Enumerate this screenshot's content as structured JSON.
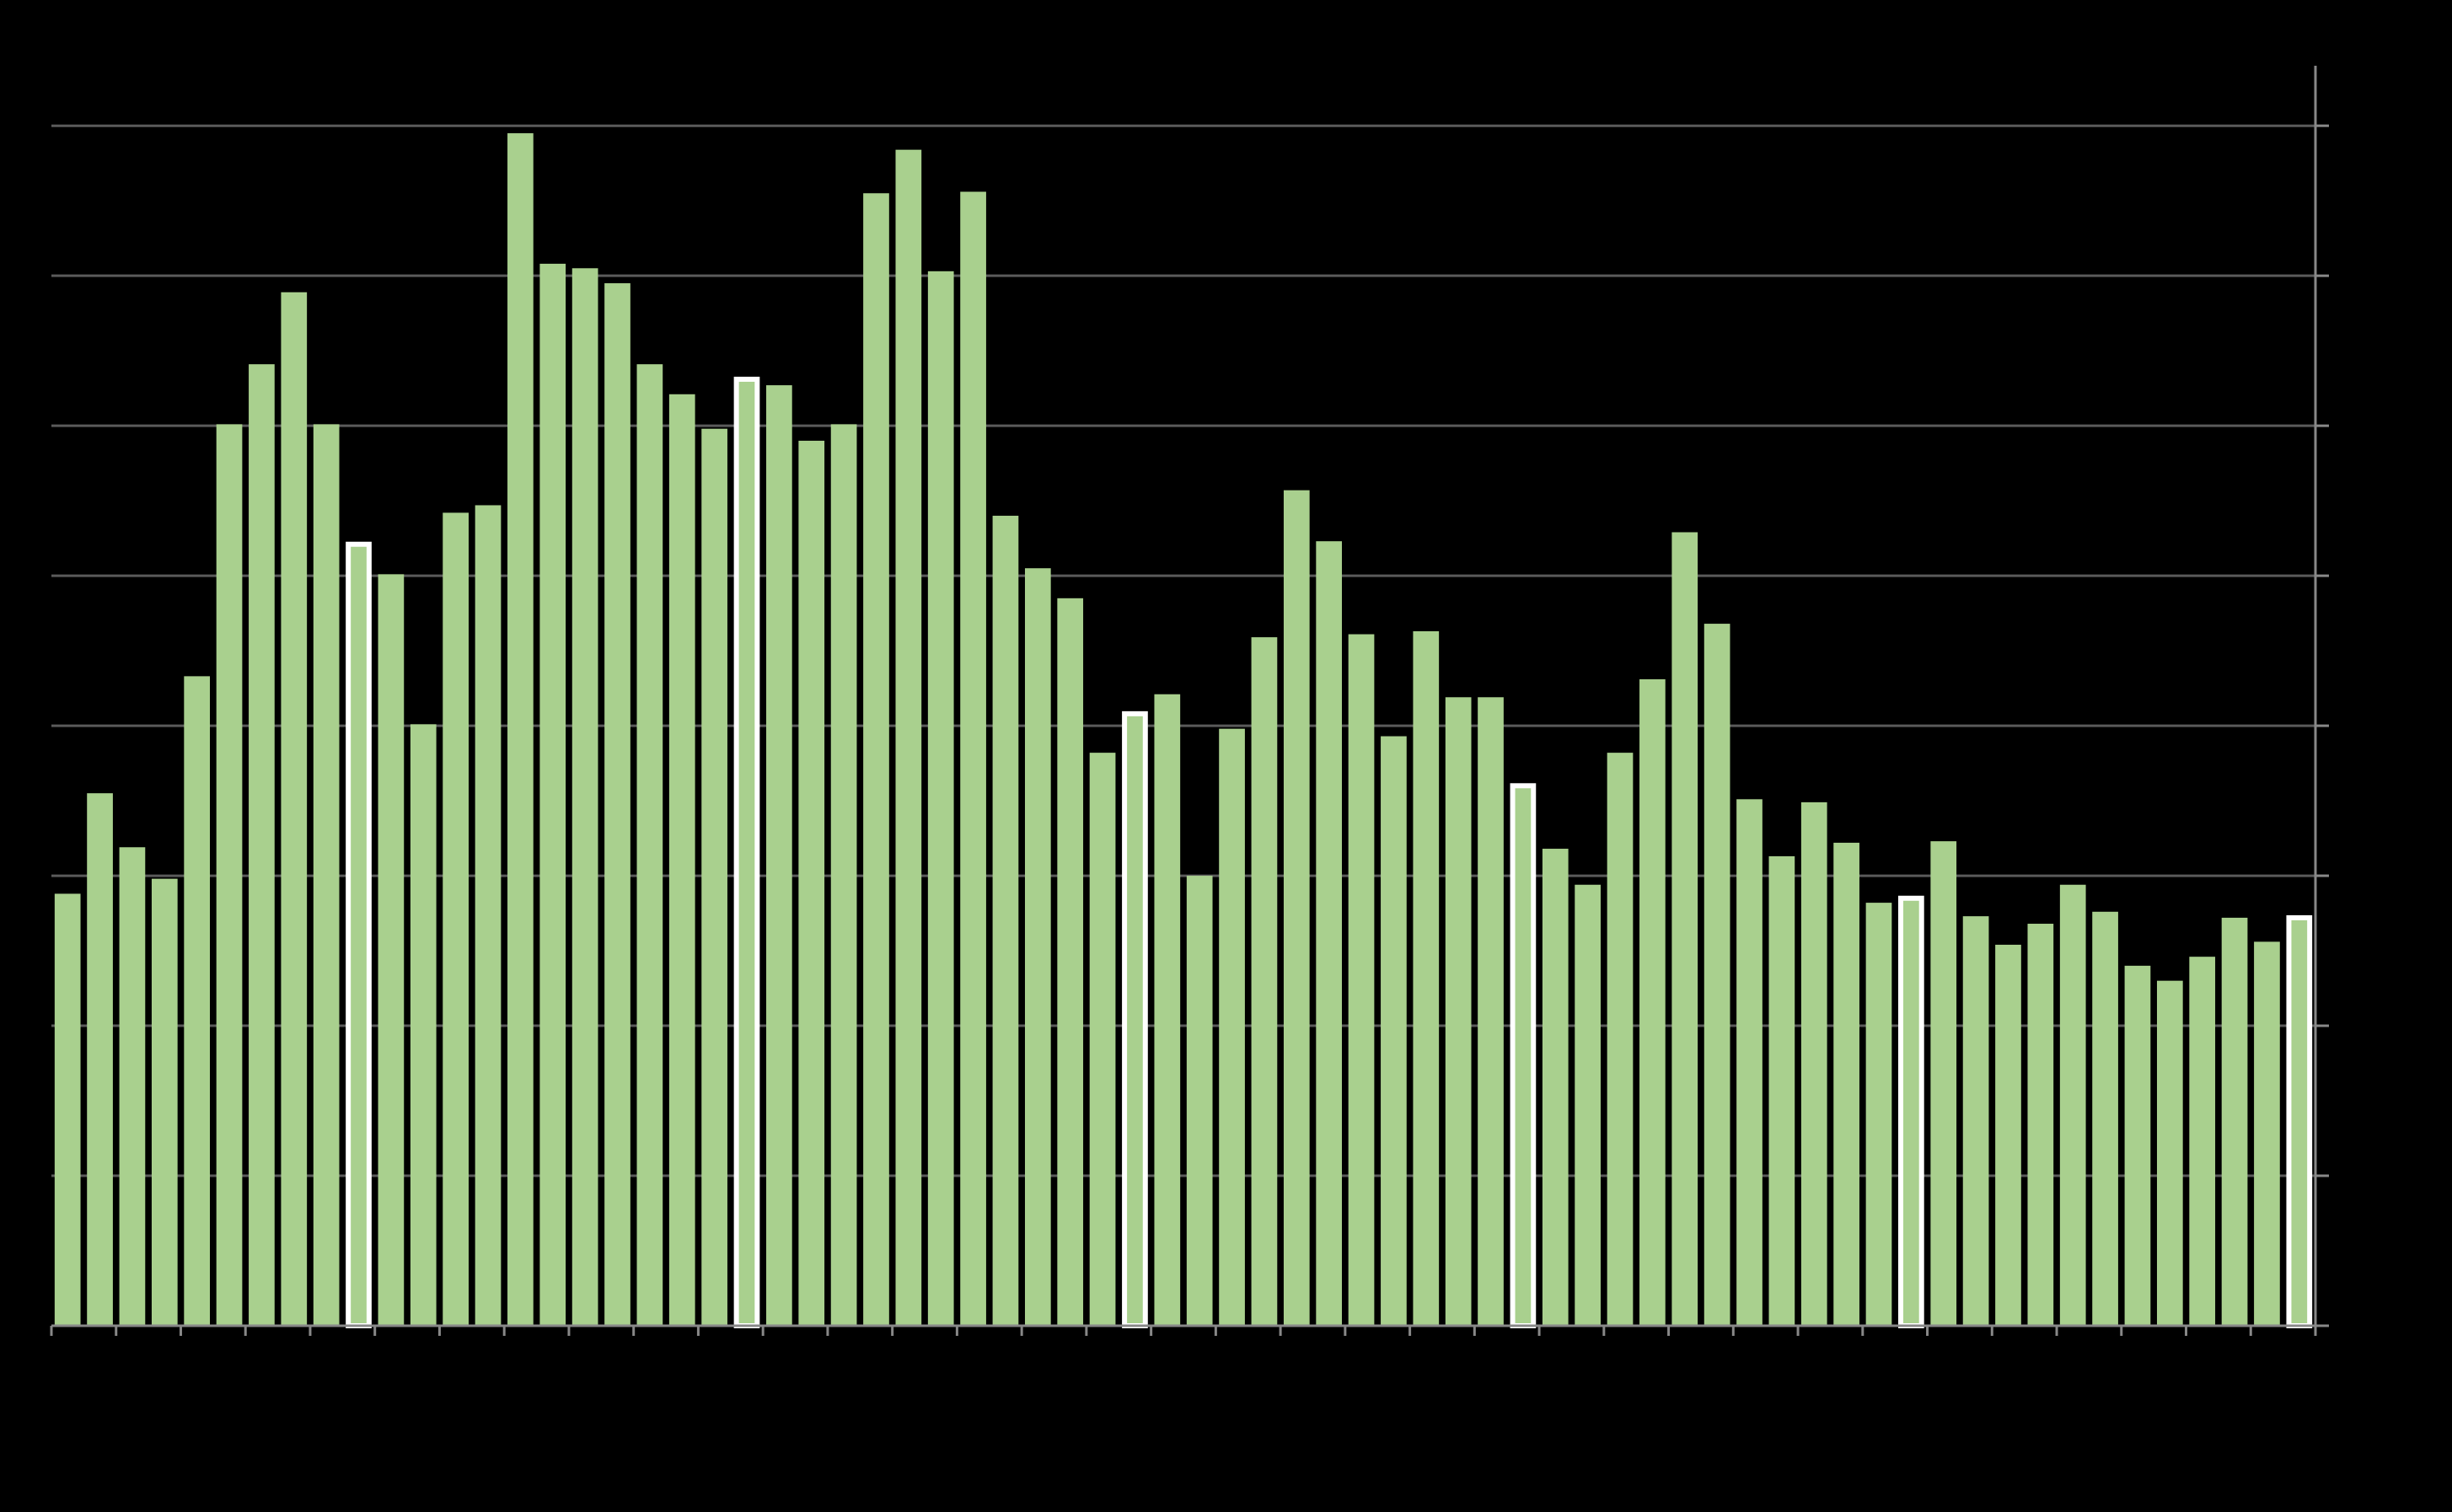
{
  "chart_data": {
    "type": "bar",
    "categories": [
      null,
      null,
      null,
      null,
      null,
      null,
      null,
      null,
      null,
      null,
      null,
      null,
      null,
      null,
      null,
      null,
      null,
      null,
      null,
      null,
      null,
      null,
      null,
      null,
      null,
      null,
      null,
      null,
      null,
      null,
      null,
      null,
      null,
      null,
      null,
      null,
      null,
      null,
      null,
      null,
      null,
      null,
      null,
      null,
      null,
      null,
      null,
      null,
      null,
      null,
      null,
      null,
      null,
      null,
      null,
      null,
      null,
      null,
      null,
      null,
      null,
      null,
      null,
      null,
      null,
      null,
      null,
      null,
      null,
      null
    ],
    "values": [
      2.88,
      3.55,
      3.19,
      2.98,
      4.33,
      6.01,
      6.41,
      6.89,
      6.01,
      5.21,
      5.01,
      4.01,
      5.42,
      5.47,
      7.95,
      7.08,
      7.05,
      6.95,
      6.41,
      6.21,
      5.98,
      6.31,
      6.27,
      5.9,
      6.01,
      7.55,
      7.84,
      7.03,
      7.56,
      5.4,
      5.05,
      4.85,
      3.82,
      4.08,
      4.21,
      3.0,
      3.98,
      4.59,
      5.57,
      5.23,
      4.61,
      3.93,
      4.63,
      4.19,
      4.19,
      3.6,
      3.18,
      2.94,
      3.82,
      4.31,
      5.29,
      4.68,
      3.51,
      3.13,
      3.49,
      3.22,
      2.82,
      2.85,
      3.23,
      2.73,
      2.54,
      2.68,
      2.94,
      2.76,
      2.4,
      2.3,
      2.46,
      2.72,
      2.56,
      2.72
    ],
    "color": "#a9d08e",
    "highlight_color": "#ffffff",
    "highlight_indices": [
      9,
      21,
      33,
      45,
      57,
      69
    ],
    "ylim": [
      0,
      8.4
    ],
    "yticks": [
      0,
      1,
      2,
      3,
      4,
      5,
      6,
      7,
      8
    ],
    "grid": true,
    "y_axis_side": "right"
  }
}
